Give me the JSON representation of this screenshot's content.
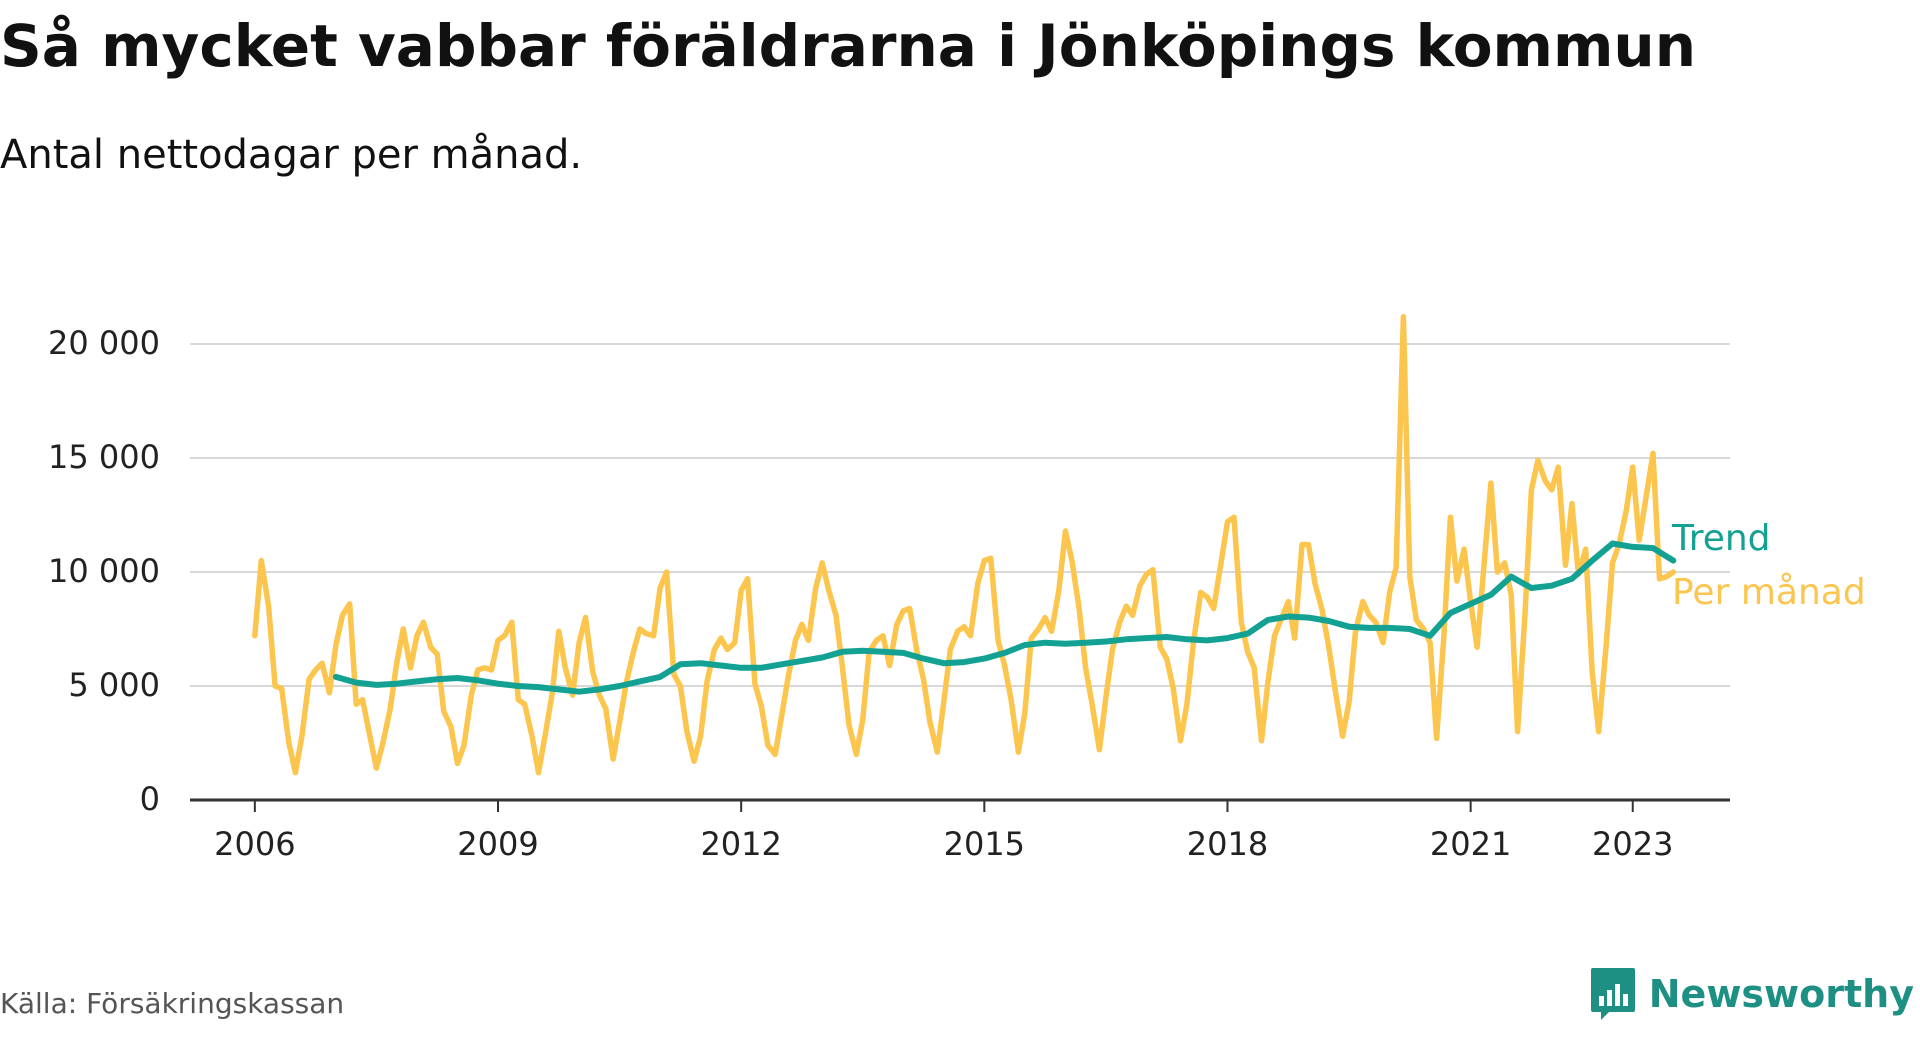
{
  "header": {
    "title": "Så mycket vabbar föräldrarna i Jönköpings kommun",
    "subtitle": "Antal nettodagar per månad."
  },
  "footer": {
    "source": "Källa: Försäkringskassan",
    "brand": "Newsworthy",
    "brand_icon": "bar-chart-logo-icon"
  },
  "colors": {
    "trend": "#13a193",
    "per_month": "#fbc54e",
    "grid": "#d8d8d8",
    "axis": "#333333",
    "brand": "#1d8f83"
  },
  "chart_data": {
    "type": "line",
    "title": "Så mycket vabbar föräldrarna i Jönköpings kommun",
    "subtitle": "Antal nettodagar per månad.",
    "xlabel": "",
    "ylabel": "",
    "ylim": [
      0,
      20000
    ],
    "yticks": [
      0,
      5000,
      10000,
      15000,
      20000
    ],
    "ytick_labels": [
      "0",
      "5 000",
      "10 000",
      "15 000",
      "20 000"
    ],
    "xticks": [
      2006,
      2009,
      2012,
      2015,
      2018,
      2021,
      2023
    ],
    "xtick_labels": [
      "2006",
      "2009",
      "2012",
      "2015",
      "2018",
      "2021",
      "2023"
    ],
    "xlim": [
      2005.2,
      2024.2
    ],
    "grid": true,
    "legend": "direct labels at line ends (right)",
    "series": [
      {
        "name": "Per månad",
        "color": "#fbc54e",
        "x": [
          2006.0,
          2006.08,
          2006.17,
          2006.25,
          2006.33,
          2006.42,
          2006.5,
          2006.58,
          2006.67,
          2006.75,
          2006.83,
          2006.92,
          2007.0,
          2007.08,
          2007.17,
          2007.25,
          2007.33,
          2007.42,
          2007.5,
          2007.58,
          2007.67,
          2007.75,
          2007.83,
          2007.92,
          2008.0,
          2008.08,
          2008.17,
          2008.25,
          2008.33,
          2008.42,
          2008.5,
          2008.58,
          2008.67,
          2008.75,
          2008.83,
          2008.92,
          2009.0,
          2009.08,
          2009.17,
          2009.25,
          2009.33,
          2009.42,
          2009.5,
          2009.58,
          2009.67,
          2009.75,
          2009.83,
          2009.92,
          2010.0,
          2010.08,
          2010.17,
          2010.25,
          2010.33,
          2010.42,
          2010.5,
          2010.58,
          2010.67,
          2010.75,
          2010.83,
          2010.92,
          2011.0,
          2011.08,
          2011.17,
          2011.25,
          2011.33,
          2011.42,
          2011.5,
          2011.58,
          2011.67,
          2011.75,
          2011.83,
          2011.92,
          2012.0,
          2012.08,
          2012.17,
          2012.25,
          2012.33,
          2012.42,
          2012.5,
          2012.58,
          2012.67,
          2012.75,
          2012.83,
          2012.92,
          2013.0,
          2013.08,
          2013.17,
          2013.25,
          2013.33,
          2013.42,
          2013.5,
          2013.58,
          2013.67,
          2013.75,
          2013.83,
          2013.92,
          2014.0,
          2014.08,
          2014.17,
          2014.25,
          2014.33,
          2014.42,
          2014.5,
          2014.58,
          2014.67,
          2014.75,
          2014.83,
          2014.92,
          2015.0,
          2015.08,
          2015.17,
          2015.25,
          2015.33,
          2015.42,
          2015.5,
          2015.58,
          2015.67,
          2015.75,
          2015.83,
          2015.92,
          2016.0,
          2016.08,
          2016.17,
          2016.25,
          2016.33,
          2016.42,
          2016.5,
          2016.58,
          2016.67,
          2016.75,
          2016.83,
          2016.92,
          2017.0,
          2017.08,
          2017.17,
          2017.25,
          2017.33,
          2017.42,
          2017.5,
          2017.58,
          2017.67,
          2017.75,
          2017.83,
          2017.92,
          2018.0,
          2018.08,
          2018.17,
          2018.25,
          2018.33,
          2018.42,
          2018.5,
          2018.58,
          2018.67,
          2018.75,
          2018.83,
          2018.92,
          2019.0,
          2019.08,
          2019.17,
          2019.25,
          2019.33,
          2019.42,
          2019.5,
          2019.58,
          2019.67,
          2019.75,
          2019.83,
          2019.92,
          2020.0,
          2020.08,
          2020.17,
          2020.25,
          2020.33,
          2020.42,
          2020.5,
          2020.58,
          2020.67,
          2020.75,
          2020.83,
          2020.92,
          2021.0,
          2021.08,
          2021.17,
          2021.25,
          2021.33,
          2021.42,
          2021.5,
          2021.58,
          2021.67,
          2021.75,
          2021.83,
          2021.92,
          2022.0,
          2022.08,
          2022.17,
          2022.25,
          2022.33,
          2022.42,
          2022.5,
          2022.58,
          2022.67,
          2022.75,
          2022.83,
          2022.92,
          2023.0,
          2023.08,
          2023.17,
          2023.25,
          2023.33,
          2023.42,
          2023.5
        ],
        "values": [
          7200,
          10500,
          8500,
          5000,
          4900,
          2500,
          1200,
          2800,
          5300,
          5700,
          6000,
          4700,
          6800,
          8100,
          8600,
          4200,
          4400,
          2800,
          1400,
          2500,
          4000,
          6000,
          7500,
          5800,
          7200,
          7800,
          6700,
          6400,
          3900,
          3200,
          1600,
          2400,
          4600,
          5700,
          5800,
          5700,
          7000,
          7200,
          7800,
          4400,
          4200,
          2800,
          1200,
          2800,
          4700,
          7400,
          5800,
          4600,
          6900,
          8000,
          5600,
          4600,
          4000,
          1800,
          3400,
          5100,
          6500,
          7500,
          7300,
          7200,
          9300,
          10000,
          5500,
          5000,
          3000,
          1700,
          2800,
          5200,
          6600,
          7100,
          6600,
          6900,
          9200,
          9700,
          5100,
          4100,
          2400,
          2000,
          3700,
          5400,
          7000,
          7700,
          7000,
          9300,
          10400,
          9200,
          8100,
          5800,
          3300,
          2000,
          3500,
          6500,
          7000,
          7200,
          5900,
          7700,
          8300,
          8400,
          6500,
          5300,
          3400,
          2100,
          4300,
          6600,
          7400,
          7600,
          7200,
          9500,
          10500,
          10600,
          7000,
          5900,
          4400,
          2100,
          3800,
          7100,
          7500,
          8000,
          7400,
          9200,
          11800,
          10500,
          8400,
          5800,
          4200,
          2200,
          4500,
          6600,
          7800,
          8500,
          8100,
          9400,
          9900,
          10100,
          6700,
          6200,
          4900,
          2600,
          4200,
          6900,
          9100,
          8900,
          8400,
          10400,
          12200,
          12400,
          7800,
          6500,
          5800,
          2600,
          5200,
          7200,
          8000,
          8700,
          7100,
          11200,
          11200,
          9500,
          8300,
          6700,
          4800,
          2800,
          4300,
          7400,
          8700,
          8100,
          7800,
          6900,
          9100,
          10200,
          21200,
          9800,
          7900,
          7500,
          6900,
          2700,
          7200,
          12400,
          9600,
          11000,
          8700,
          6700,
          10500,
          13900,
          10000,
          10400,
          9000,
          3000,
          8100,
          13600,
          14900,
          14000,
          13600,
          14600,
          10300,
          13000,
          9900,
          11000,
          5600,
          3000,
          6700,
          10400,
          11200,
          12700,
          14600,
          11400,
          13400,
          15200,
          9700,
          9800,
          10000
        ]
      },
      {
        "name": "Trend",
        "color": "#13a193",
        "x": [
          2007.0,
          2007.25,
          2007.5,
          2007.75,
          2008.0,
          2008.25,
          2008.5,
          2008.75,
          2009.0,
          2009.25,
          2009.5,
          2009.75,
          2010.0,
          2010.25,
          2010.5,
          2010.75,
          2011.0,
          2011.25,
          2011.5,
          2011.75,
          2012.0,
          2012.25,
          2012.5,
          2012.75,
          2013.0,
          2013.25,
          2013.5,
          2013.75,
          2014.0,
          2014.25,
          2014.5,
          2014.75,
          2015.0,
          2015.25,
          2015.5,
          2015.75,
          2016.0,
          2016.25,
          2016.5,
          2016.75,
          2017.0,
          2017.25,
          2017.5,
          2017.75,
          2018.0,
          2018.25,
          2018.5,
          2018.75,
          2019.0,
          2019.25,
          2019.5,
          2019.75,
          2020.0,
          2020.25,
          2020.5,
          2020.75,
          2021.0,
          2021.25,
          2021.5,
          2021.75,
          2022.0,
          2022.25,
          2022.5,
          2022.75,
          2023.0,
          2023.25,
          2023.5
        ],
        "values": [
          5400,
          5150,
          5050,
          5100,
          5200,
          5300,
          5350,
          5250,
          5100,
          5000,
          4950,
          4850,
          4750,
          4850,
          5000,
          5200,
          5400,
          5950,
          6000,
          5900,
          5800,
          5800,
          5950,
          6100,
          6250,
          6500,
          6550,
          6500,
          6450,
          6200,
          6000,
          6050,
          6200,
          6450,
          6800,
          6900,
          6850,
          6900,
          6950,
          7050,
          7100,
          7150,
          7050,
          7000,
          7100,
          7300,
          7900,
          8050,
          8000,
          7850,
          7600,
          7550,
          7550,
          7500,
          7200,
          8200,
          8600,
          9000,
          9800,
          9300,
          9400,
          9700,
          10500,
          11250,
          11100,
          11050,
          10500
        ]
      }
    ]
  }
}
